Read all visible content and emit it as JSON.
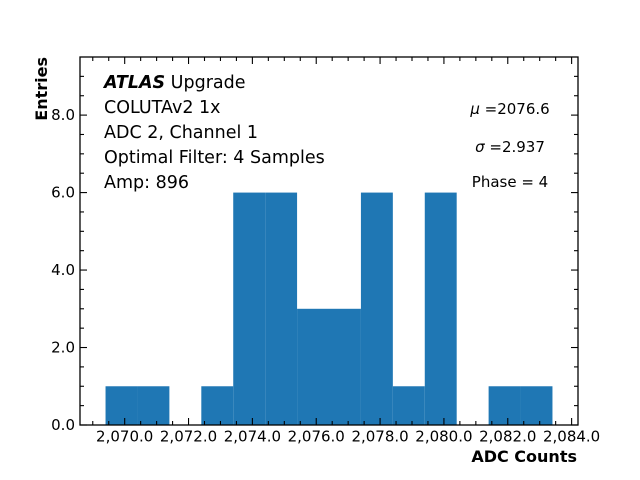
{
  "figure": {
    "background": "#ffffff",
    "axis_color": "#000000"
  },
  "chart_data": {
    "type": "bar",
    "subtype": "histogram",
    "title": "",
    "xlabel": "ADC Counts",
    "ylabel": "Entries",
    "bar_color": "#1f77b4",
    "bin_start": 2069.4,
    "bin_width": 1.0,
    "bin_edges": [
      2069.4,
      2070.4,
      2071.4,
      2072.4,
      2073.4,
      2074.4,
      2075.4,
      2076.4,
      2077.4,
      2078.4,
      2079.4,
      2080.4,
      2081.4,
      2082.4,
      2083.4
    ],
    "counts": [
      1,
      1,
      0,
      1,
      6,
      6,
      3,
      3,
      6,
      1,
      6,
      0,
      1,
      1
    ],
    "xlim": [
      2068.6,
      2084.2
    ],
    "ylim": [
      0,
      9.5
    ],
    "x_ticks": [
      2070,
      2072,
      2074,
      2076,
      2078,
      2080,
      2082,
      2084
    ],
    "x_tick_labels": [
      "2,070.0",
      "2,072.0",
      "2,074.0",
      "2,076.0",
      "2,078.0",
      "2,080.0",
      "2,082.0",
      "2,084.0"
    ],
    "y_ticks": [
      0,
      2,
      4,
      6,
      8
    ],
    "y_tick_labels": [
      "0.0",
      "2.0",
      "4.0",
      "6.0",
      "8.0"
    ],
    "minor_tick_step": 0.5,
    "grid": false,
    "legend": false,
    "info_text": {
      "experiment": "ATLAS",
      "experiment_rest": " Upgrade",
      "lines": [
        "COLUTAv2 1x",
        "ADC 2, Channel 1",
        "Optimal Filter: 4 Samples",
        "Amp: 896"
      ]
    },
    "stats": {
      "mu": 2076.6,
      "sigma": 2.937,
      "phase": 4
    },
    "stats_text": {
      "mu_symbol": "μ",
      "mu_value": " =2076.6",
      "sigma_symbol": "σ",
      "sigma_value": " =2.937",
      "phase": "Phase = 4"
    }
  }
}
